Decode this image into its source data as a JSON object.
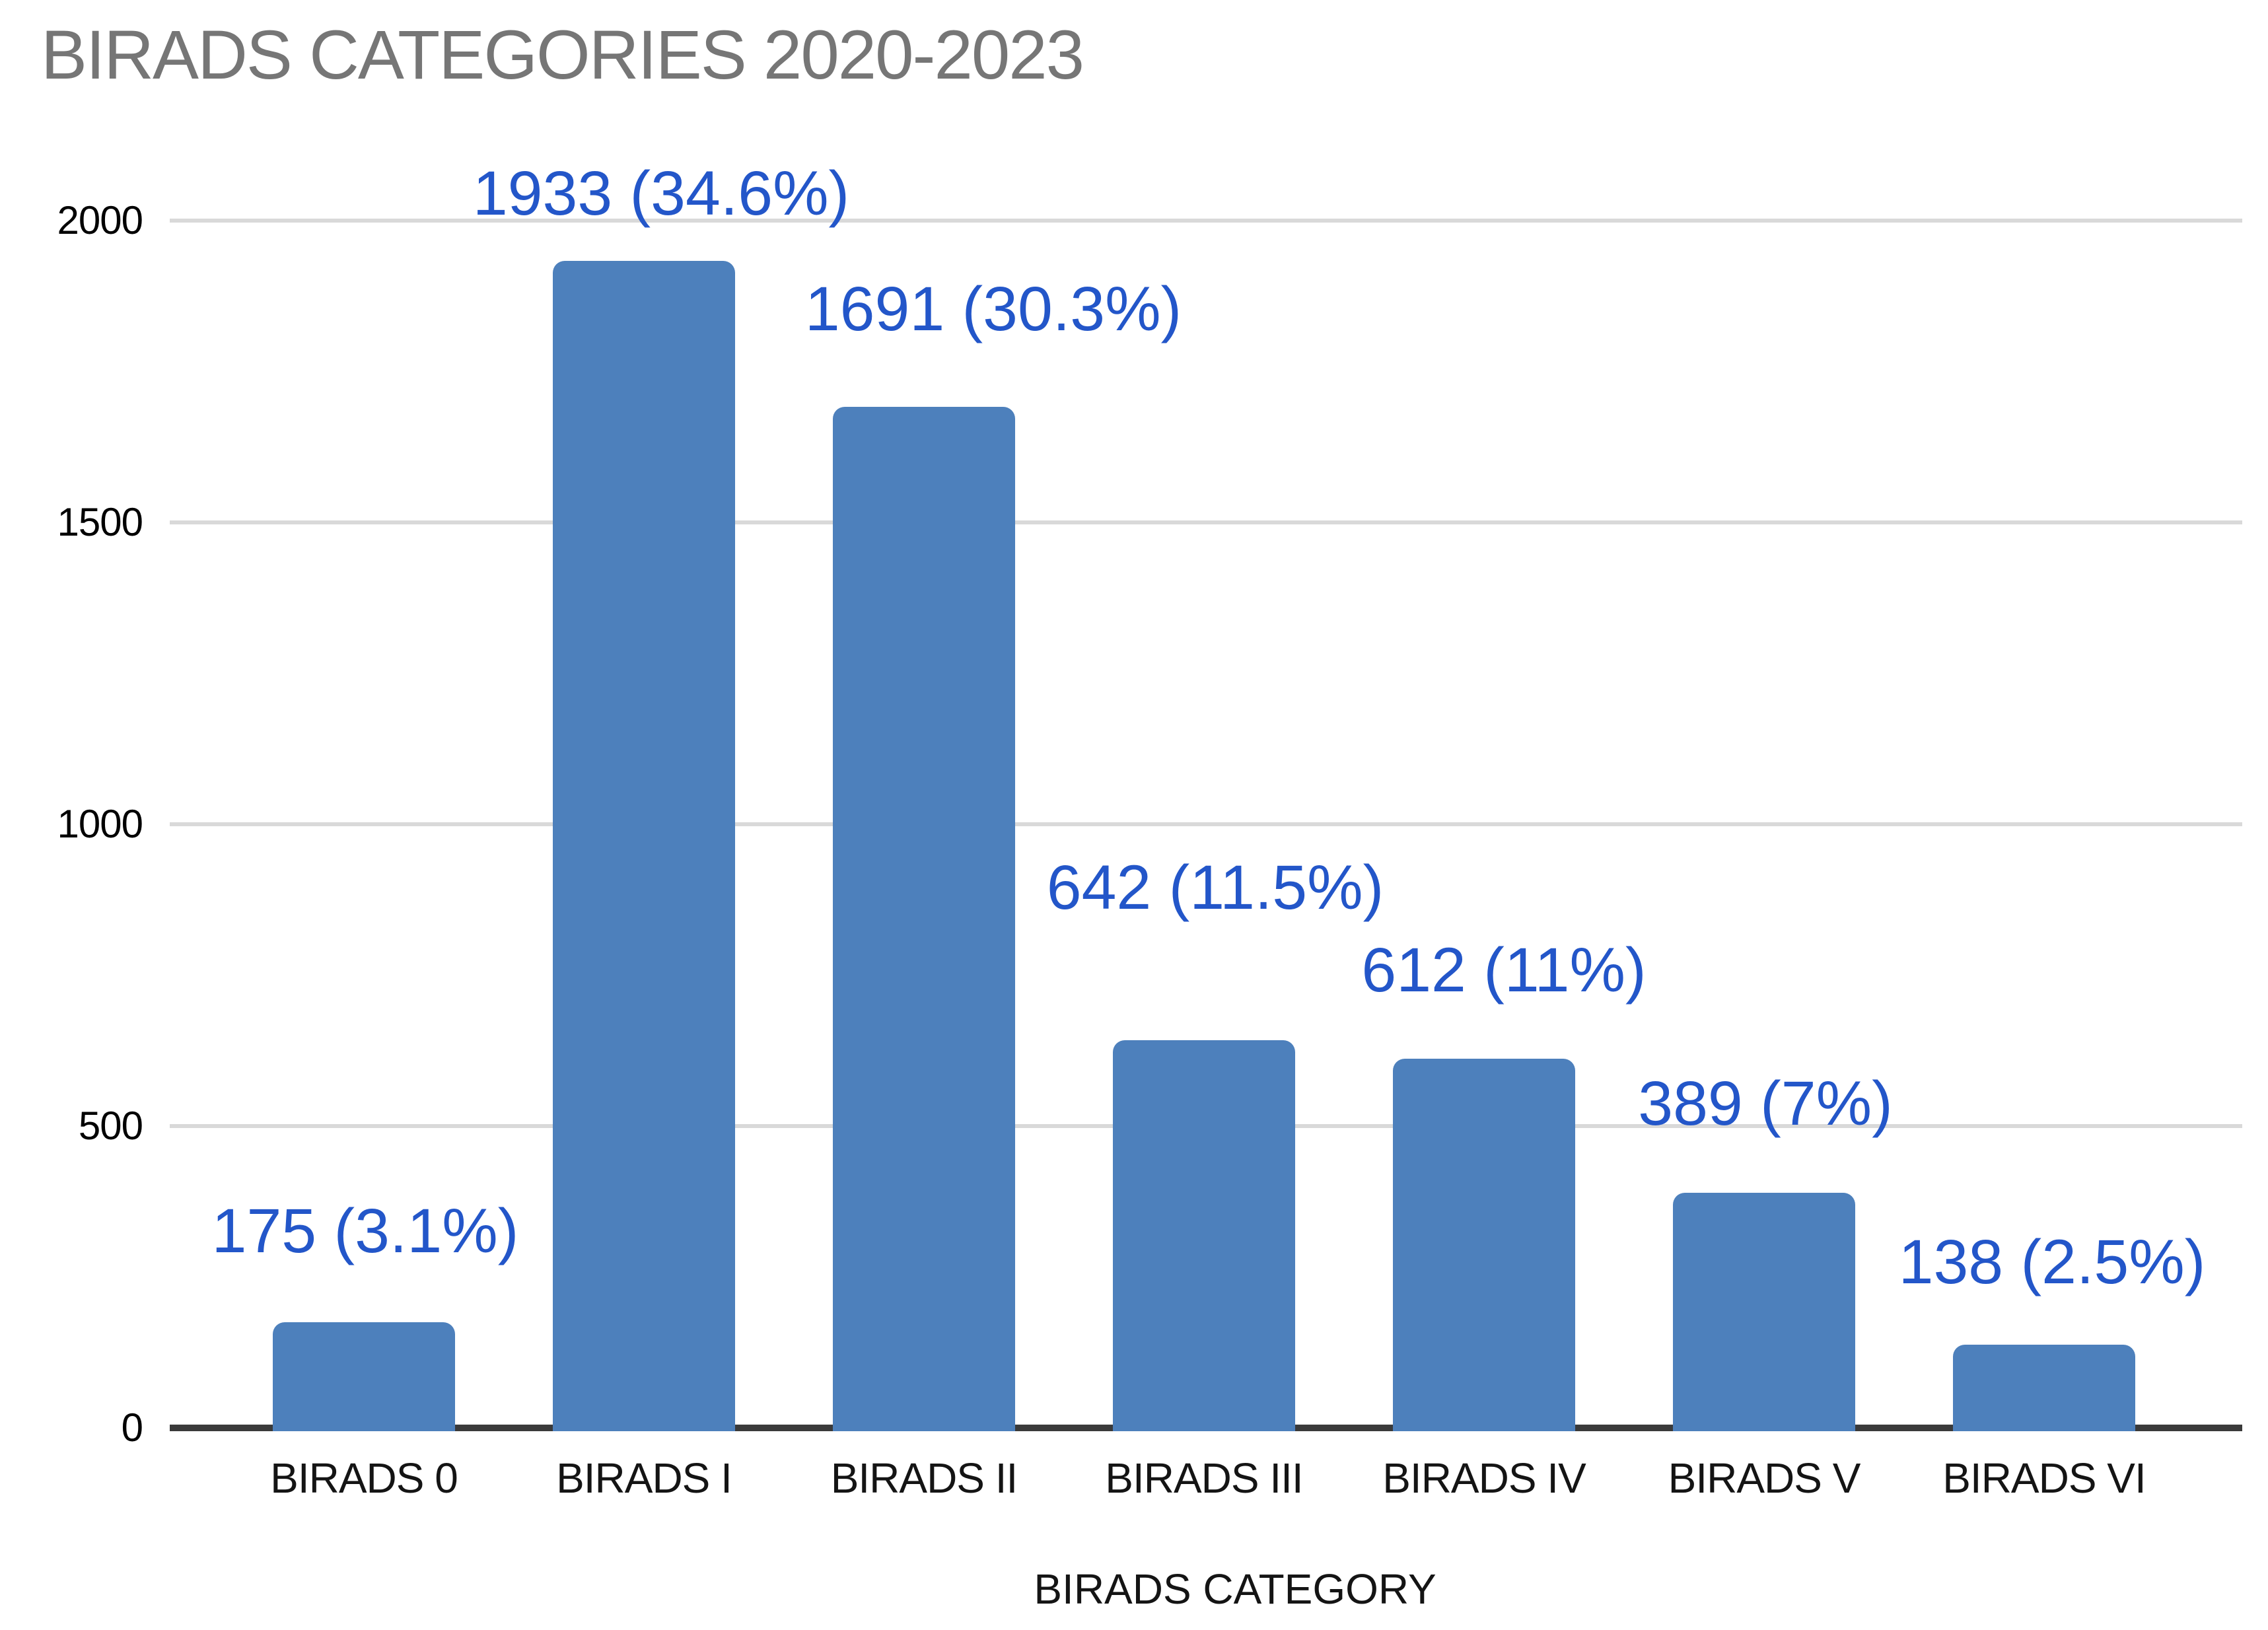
{
  "chart_data": {
    "type": "bar",
    "title": "BIRADS CATEGORIES 2020-2023",
    "categories": [
      "BIRADS 0",
      "BIRADS I",
      "BIRADS II",
      "BIRADS III",
      "BIRADS IV",
      "BIRADS V",
      "BIRADS VI"
    ],
    "values": [
      175,
      1933,
      1691,
      642,
      612,
      389,
      138
    ],
    "percentages": [
      3.1,
      34.6,
      30.3,
      11.5,
      11,
      7,
      2.5
    ],
    "data_labels": [
      "175 (3.1%)",
      "1933 (34.6%)",
      "1691 (30.3%)",
      "642 (11.5%)",
      "612 (11%)",
      "389 (7%)",
      "138 (2.5%)"
    ],
    "xlabel": "BIRADS CATEGORY",
    "ylabel": "",
    "y_ticks": [
      0,
      500,
      1000,
      1500,
      2000
    ],
    "ylim": [
      0,
      2000
    ],
    "grid": "horizontal",
    "legend": "none",
    "colors": {
      "bar": "#4D80BC",
      "data_label": "#2356C9",
      "title": "#767676",
      "gridline": "#D9D9D9",
      "axis_line": "#3A3A3A",
      "axis_text": "#141414",
      "background": "#FFFFFF"
    }
  }
}
